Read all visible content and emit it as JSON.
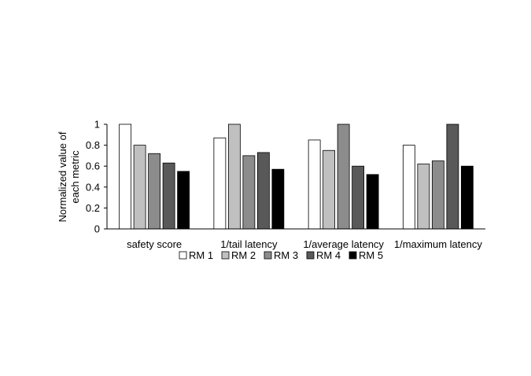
{
  "chart_data": {
    "type": "bar",
    "title": "",
    "ylabel_lines": [
      "Normalized value of",
      "each  metric"
    ],
    "xlabel": "",
    "ylim": [
      0,
      1
    ],
    "yticks": [
      0,
      0.2,
      0.4,
      0.6,
      0.8,
      1
    ],
    "ytick_labels": [
      "0",
      "0.2",
      "0.4",
      "0.6",
      "0.8",
      "1"
    ],
    "categories": [
      "safety score",
      "1/tail latency",
      "1/average latency",
      "1/maximum latency"
    ],
    "series": [
      {
        "name": "RM 1",
        "color": "#ffffff",
        "values": [
          1.0,
          0.87,
          0.85,
          0.8
        ]
      },
      {
        "name": "RM 2",
        "color": "#c0c0c0",
        "values": [
          0.8,
          1.0,
          0.75,
          0.62
        ]
      },
      {
        "name": "RM 3",
        "color": "#8c8c8c",
        "values": [
          0.72,
          0.7,
          1.0,
          0.65
        ]
      },
      {
        "name": "RM 4",
        "color": "#595959",
        "values": [
          0.63,
          0.73,
          0.6,
          1.0
        ]
      },
      {
        "name": "RM 5",
        "color": "#000000",
        "values": [
          0.55,
          0.57,
          0.52,
          0.6
        ]
      }
    ],
    "grid": false,
    "legend_position": "bottom"
  }
}
